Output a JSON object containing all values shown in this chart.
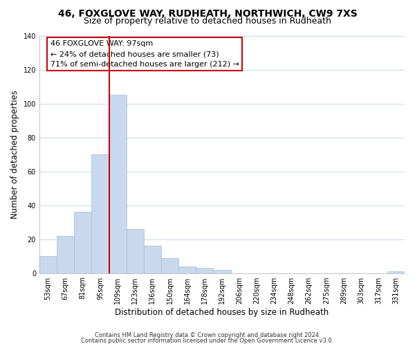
{
  "title": "46, FOXGLOVE WAY, RUDHEATH, NORTHWICH, CW9 7XS",
  "subtitle": "Size of property relative to detached houses in Rudheath",
  "xlabel": "Distribution of detached houses by size in Rudheath",
  "ylabel": "Number of detached properties",
  "bar_color": "#c8d9ee",
  "bar_edgecolor": "#aabbd4",
  "bin_labels": [
    "53sqm",
    "67sqm",
    "81sqm",
    "95sqm",
    "109sqm",
    "123sqm",
    "136sqm",
    "150sqm",
    "164sqm",
    "178sqm",
    "192sqm",
    "206sqm",
    "220sqm",
    "234sqm",
    "248sqm",
    "262sqm",
    "275sqm",
    "289sqm",
    "303sqm",
    "317sqm",
    "331sqm"
  ],
  "bar_heights": [
    10,
    22,
    36,
    70,
    105,
    26,
    16,
    9,
    4,
    3,
    2,
    0,
    0,
    0,
    0,
    0,
    0,
    0,
    0,
    0,
    1
  ],
  "vline_position": 3.5,
  "vline_color": "#cc0000",
  "ylim": [
    0,
    140
  ],
  "yticks": [
    0,
    20,
    40,
    60,
    80,
    100,
    120,
    140
  ],
  "annotation_line1": "46 FOXGLOVE WAY: 97sqm",
  "annotation_line2": "← 24% of detached houses are smaller (73)",
  "annotation_line3": "71% of semi-detached houses are larger (212) →",
  "footer_line1": "Contains HM Land Registry data © Crown copyright and database right 2024.",
  "footer_line2": "Contains public sector information licensed under the Open Government Licence v3.0.",
  "background_color": "#ffffff",
  "grid_color": "#c8d8e8",
  "title_fontsize": 10,
  "subtitle_fontsize": 9,
  "axis_label_fontsize": 8.5,
  "tick_fontsize": 7,
  "annotation_fontsize": 8,
  "footer_fontsize": 6
}
